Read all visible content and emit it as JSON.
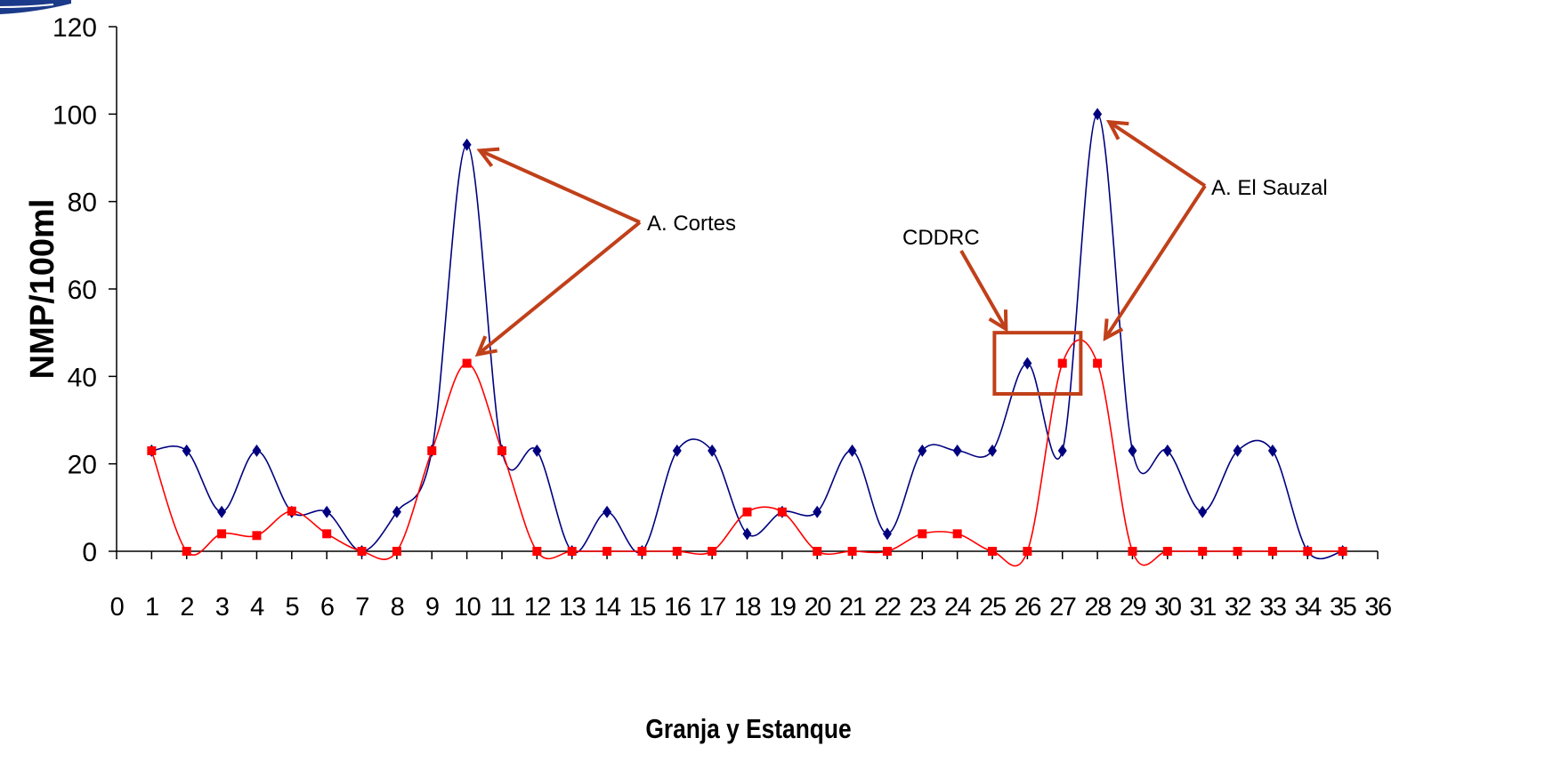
{
  "chart_data": {
    "type": "line",
    "xlabel": "Granja y Estanque",
    "ylabel": "NMP/100ml",
    "xlim": [
      0,
      36
    ],
    "ylim": [
      0,
      120
    ],
    "x_ticks": [
      0,
      1,
      2,
      3,
      4,
      5,
      6,
      7,
      8,
      9,
      10,
      11,
      12,
      13,
      14,
      15,
      16,
      17,
      18,
      19,
      20,
      21,
      22,
      23,
      24,
      25,
      26,
      27,
      28,
      29,
      30,
      31,
      32,
      33,
      34,
      35,
      36
    ],
    "y_ticks": [
      0,
      20,
      40,
      60,
      80,
      100,
      120
    ],
    "grid": false,
    "series": [
      {
        "color": "#00007f",
        "marker": "diamond",
        "x": [
          1,
          2,
          3,
          4,
          5,
          6,
          7,
          8,
          9,
          10,
          11,
          12,
          13,
          14,
          15,
          16,
          17,
          18,
          19,
          20,
          21,
          22,
          23,
          24,
          25,
          26,
          27,
          28,
          29,
          30,
          31,
          32,
          33,
          34,
          35
        ],
        "values": [
          23,
          23,
          9,
          23,
          9,
          9,
          0,
          9,
          23,
          93,
          23,
          23,
          0,
          9,
          0,
          23,
          23,
          4,
          9,
          9,
          23,
          4,
          23,
          23,
          23,
          43,
          23,
          100,
          23,
          23,
          9,
          23,
          23,
          0,
          0
        ]
      },
      {
        "color": "#ff0000",
        "marker": "square",
        "x": [
          1,
          2,
          3,
          4,
          5,
          6,
          7,
          8,
          9,
          10,
          11,
          12,
          13,
          14,
          15,
          16,
          17,
          18,
          19,
          20,
          21,
          22,
          23,
          24,
          25,
          26,
          27,
          28,
          29,
          30,
          31,
          32,
          33,
          34,
          35
        ],
        "values": [
          23,
          0,
          4,
          3.6,
          9.2,
          4,
          0,
          0,
          23,
          43,
          23,
          0,
          0,
          0,
          0,
          0,
          0,
          9,
          9,
          0,
          0,
          0,
          4,
          4,
          0,
          0,
          43,
          43,
          0,
          0,
          0,
          0,
          0,
          0,
          0
        ]
      }
    ],
    "annotations": [
      {
        "text": "A. Cortes",
        "color": "#c0401a",
        "targets": [
          [
            10,
            93
          ],
          [
            10,
            43
          ]
        ]
      },
      {
        "text": "CDDRC",
        "color": "#c0401a",
        "targets": [
          [
            26,
            43
          ]
        ],
        "box": true
      },
      {
        "text": "A. El Sauzal",
        "color": "#c0401a",
        "targets": [
          [
            28,
            100
          ],
          [
            28,
            46
          ]
        ]
      }
    ]
  }
}
